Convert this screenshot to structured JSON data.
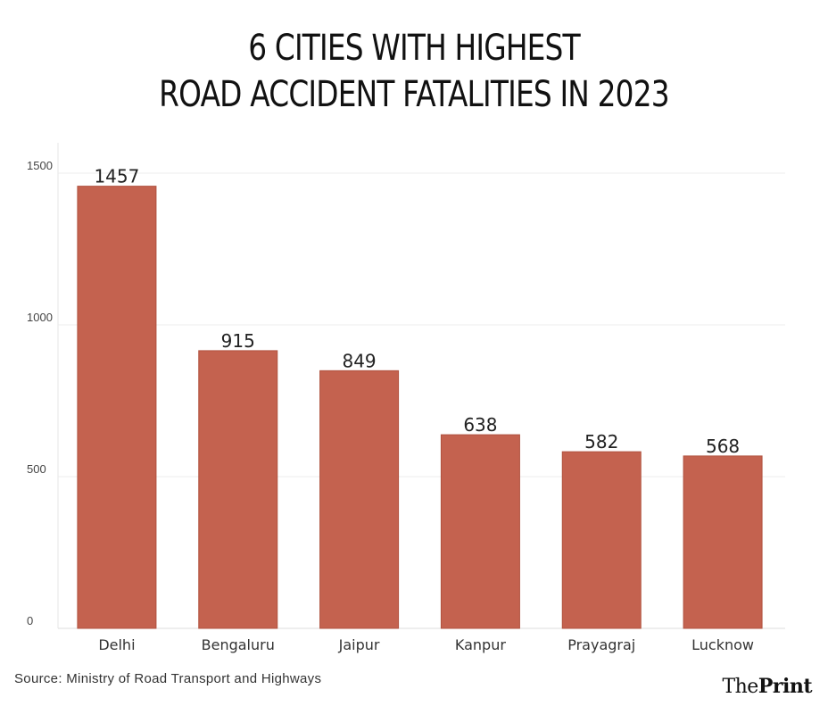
{
  "chart_data": {
    "type": "bar",
    "title_lines": [
      "6 CITIES WITH HIGHEST",
      "ROAD ACCIDENT FATALITIES IN 2023"
    ],
    "categories": [
      "Delhi",
      "Bengaluru",
      "Jaipur",
      "Kanpur",
      "Prayagraj",
      "Lucknow"
    ],
    "values": [
      1457,
      915,
      849,
      638,
      582,
      568
    ],
    "ylim": [
      0,
      1600
    ],
    "yticks": [
      0,
      500,
      1000,
      1500
    ],
    "grid": true,
    "legend": "none",
    "bar_color": "#c4624f"
  },
  "footer": {
    "source": "Source: Ministry of Road Transport and Highways",
    "logo_the": "The",
    "logo_print": "Print"
  }
}
